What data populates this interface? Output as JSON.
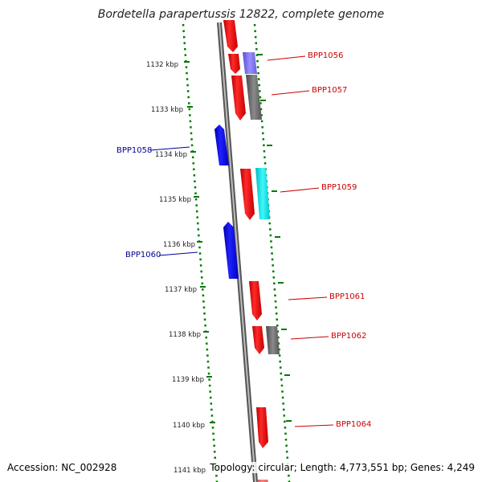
{
  "title": "Bordetella parapertussis 12822, complete genome",
  "footer": {
    "accession": "Accession: NC_002928",
    "summary": "Topology: circular; Length: 4,773,551 bp; Genes: 4,249"
  },
  "ticks": [
    "1132 kbp",
    "1133 kbp",
    "1134 kbp",
    "1135 kbp",
    "1136 kbp",
    "1137 kbp",
    "1138 kbp",
    "1139 kbp",
    "1140 kbp",
    "1141 kbp"
  ],
  "genes": [
    {
      "name": "BPP1056",
      "strand": "forward",
      "color": "#e30000"
    },
    {
      "name": "BPP1057",
      "strand": "forward",
      "color": "#e30000"
    },
    {
      "name": "BPP1058",
      "strand": "reverse",
      "color": "#0000e6"
    },
    {
      "name": "BPP1059",
      "strand": "forward",
      "color": "#e30000"
    },
    {
      "name": "BPP1060",
      "strand": "reverse",
      "color": "#0000e6"
    },
    {
      "name": "BPP1061",
      "strand": "forward",
      "color": "#e30000"
    },
    {
      "name": "BPP1062",
      "strand": "forward",
      "color": "#e30000"
    },
    {
      "name": "BPP1064",
      "strand": "forward",
      "color": "#e30000"
    }
  ],
  "colors": {
    "forward_cds": "#e30000",
    "reverse_cds": "#0000e6",
    "forward_label": "#cc0000",
    "reverse_label": "#000099",
    "ruler": "#007a00",
    "backbone": "#8a8a8a",
    "feature_purple": "#7b6fe0",
    "feature_gray": "#6e6e6e",
    "feature_cyan": "#00e6ea"
  }
}
